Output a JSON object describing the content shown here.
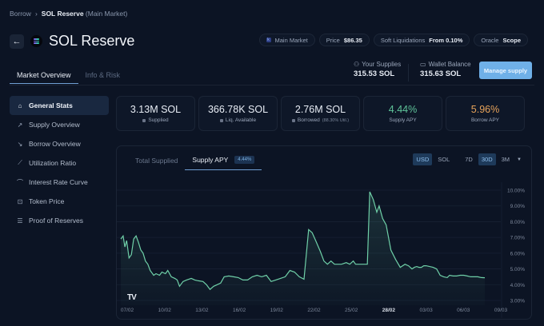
{
  "breadcrumb": {
    "root": "Borrow",
    "current": "SOL Reserve",
    "context": "(Main Market)"
  },
  "header": {
    "title": "SOL Reserve",
    "back_icon": "arrow-left-icon",
    "token_icon": "solana-logo"
  },
  "tabs": [
    {
      "label": "Market Overview",
      "active": true
    },
    {
      "label": "Info & Risk",
      "active": false
    }
  ],
  "pills": {
    "market": {
      "label": "Main Market"
    },
    "price": {
      "label": "Price",
      "value": "$86.35"
    },
    "soft_liq": {
      "label": "Soft Liquidations",
      "value": "From 0.10%"
    },
    "oracle": {
      "label": "Oracle",
      "value": "Scope"
    }
  },
  "user": {
    "supplies": {
      "label": "Your Supplies",
      "value": "315.53 SOL",
      "icon": "user-icon"
    },
    "wallet": {
      "label": "Wallet Balance",
      "value": "315.63 SOL",
      "icon": "wallet-icon"
    },
    "manage_label": "Manage supply"
  },
  "sidebar": {
    "items": [
      {
        "label": "General Stats",
        "icon": "home-icon",
        "active": true
      },
      {
        "label": "Supply Overview",
        "icon": "arrow-up-right-icon"
      },
      {
        "label": "Borrow Overview",
        "icon": "arrow-down-right-icon"
      },
      {
        "label": "Utilization Ratio",
        "icon": "line-chart-icon"
      },
      {
        "label": "Interest Rate Curve",
        "icon": "curve-icon"
      },
      {
        "label": "Token Price",
        "icon": "price-chart-icon"
      },
      {
        "label": "Proof of Reserves",
        "icon": "list-icon"
      }
    ]
  },
  "stats": [
    {
      "value": "3.13M SOL",
      "label": "Supplied"
    },
    {
      "value": "366.78K SOL",
      "label": "Liq. Available"
    },
    {
      "value": "2.76M SOL",
      "label": "Borrowed",
      "note": "(88.30% Util.)"
    },
    {
      "value": "4.44%",
      "label": "Supply APY",
      "color": "#5fc49a"
    },
    {
      "value": "5.96%",
      "label": "Borrow APY",
      "color": "#e7a35a"
    }
  ],
  "chart_panel": {
    "tabs": [
      {
        "label": "Total Supplied"
      },
      {
        "label": "Supply APY",
        "badge": "4.44%",
        "active": true
      }
    ],
    "currency": [
      {
        "label": "USD",
        "selected": true
      },
      {
        "label": "SOL"
      }
    ],
    "ranges": [
      {
        "label": "7D"
      },
      {
        "label": "30D",
        "selected": true
      },
      {
        "label": "3M"
      }
    ],
    "logo": "TV"
  },
  "chart_data": {
    "type": "area",
    "title": "Supply APY",
    "xlabel": "",
    "ylabel": "",
    "line_color": "#6fd0a8",
    "ylim": [
      3.0,
      10.0
    ],
    "y_ticks": [
      "3.00%",
      "4.00%",
      "5.00%",
      "6.00%",
      "7.00%",
      "8.00%",
      "9.00%",
      "10.00%"
    ],
    "x_ticks": [
      "07/02",
      "10/02",
      "13/02",
      "16/02",
      "19/02",
      "22/02",
      "25/02",
      "28/02",
      "03/03",
      "06/03",
      "09/03"
    ],
    "x_range_days": [
      0,
      31
    ],
    "x": [
      0,
      0.2,
      0.35,
      0.5,
      0.7,
      0.9,
      1.1,
      1.3,
      1.5,
      1.7,
      1.9,
      2.1,
      2.3,
      2.5,
      2.8,
      3.0,
      3.3,
      3.5,
      3.8,
      4.0,
      4.3,
      4.6,
      4.8,
      5.0,
      5.3,
      5.6,
      6.0,
      6.3,
      6.6,
      7.0,
      7.3,
      7.6,
      7.9,
      8.2,
      8.5,
      8.8,
      9.2,
      9.6,
      10.0,
      10.4,
      10.8,
      11.2,
      11.6,
      12.0,
      12.4,
      12.8,
      13.2,
      13.6,
      14.0,
      14.4,
      14.8,
      15.2,
      15.6,
      16.0,
      16.3,
      16.6,
      17.0,
      17.3,
      17.6,
      17.9,
      18.2,
      18.5,
      18.8,
      19.2,
      19.5,
      19.8,
      20.0,
      20.2,
      20.4,
      20.7,
      21.0,
      21.2,
      21.5,
      21.8,
      22.0,
      22.3,
      22.6,
      23.0,
      23.4,
      23.8,
      24.2,
      24.5,
      24.8,
      25.0,
      25.2,
      25.4,
      25.6,
      25.8,
      26.0,
      26.3,
      26.6,
      26.9,
      27.2,
      27.5,
      27.8,
      28.0,
      28.3,
      28.6,
      28.9,
      29.2,
      29.5,
      29.8,
      30.1,
      30.4,
      30.7,
      31.0
    ],
    "y": [
      6.9,
      7.1,
      6.4,
      6.8,
      5.7,
      5.9,
      6.9,
      7.1,
      6.7,
      6.2,
      6.0,
      5.5,
      5.3,
      4.9,
      4.6,
      4.7,
      4.6,
      4.8,
      4.7,
      4.9,
      4.5,
      4.4,
      4.3,
      3.9,
      4.2,
      4.3,
      4.4,
      4.3,
      4.25,
      4.2,
      4.0,
      3.7,
      3.9,
      4.0,
      4.1,
      4.5,
      4.55,
      4.5,
      4.45,
      4.3,
      4.3,
      4.5,
      4.6,
      4.5,
      4.6,
      4.2,
      4.3,
      4.4,
      4.5,
      4.9,
      4.8,
      4.5,
      4.35,
      7.5,
      7.3,
      6.8,
      6.1,
      5.5,
      5.3,
      5.5,
      5.3,
      5.3,
      5.3,
      5.4,
      5.3,
      5.5,
      5.3,
      5.3,
      5.3,
      5.3,
      5.3,
      9.9,
      9.4,
      8.6,
      9.0,
      8.2,
      7.8,
      6.2,
      5.6,
      5.1,
      5.3,
      5.2,
      5.0,
      5.1,
      5.15,
      5.1,
      5.1,
      5.2,
      5.2,
      5.15,
      5.1,
      5.0,
      4.6,
      4.5,
      4.45,
      4.6,
      4.55,
      4.55,
      4.6,
      4.6,
      4.55,
      4.5,
      4.5,
      4.5,
      4.45,
      4.44
    ]
  }
}
